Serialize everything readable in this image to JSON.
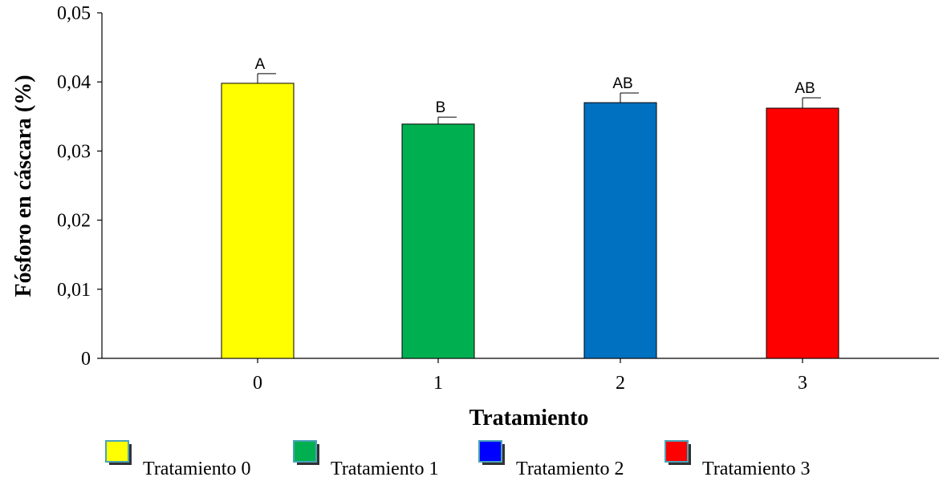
{
  "chart_data": {
    "type": "bar",
    "categories": [
      "0",
      "1",
      "2",
      "3"
    ],
    "values": [
      0.0398,
      0.0339,
      0.037,
      0.0362
    ],
    "error_bars": [
      0.0014,
      0.001,
      0.0014,
      0.0015
    ],
    "significance_labels": [
      "A",
      "B",
      "AB",
      "AB"
    ],
    "colors": [
      "#ffff00",
      "#00b050",
      "#0070c0",
      "#ff0000"
    ],
    "xlabel": "Tratamiento",
    "ylabel": "Fósforo en cáscara (%)",
    "ylim": [
      0,
      0.05
    ],
    "yticks": [
      0,
      0.01,
      0.02,
      0.03,
      0.04,
      0.05
    ],
    "ytick_labels": [
      "0",
      "0,01",
      "0,02",
      "0,03",
      "0,04",
      "0,05"
    ],
    "grid": false,
    "legend_position": "bottom",
    "legend": [
      {
        "label": "Tratamiento 0",
        "color": "#ffff00"
      },
      {
        "label": "Tratamiento 1",
        "color": "#00b050"
      },
      {
        "label": "Tratamiento 2",
        "color": "#0000ff"
      },
      {
        "label": "Tratamiento 3",
        "color": "#ff0000"
      }
    ]
  }
}
